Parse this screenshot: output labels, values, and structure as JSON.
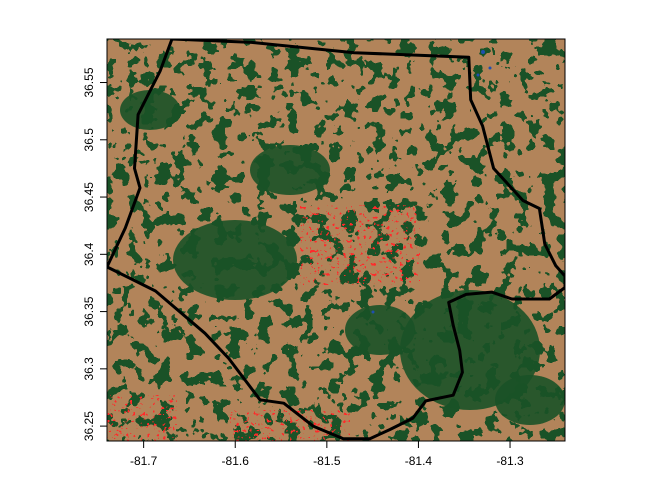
{
  "map": {
    "x_axis": {
      "range": [
        -81.74,
        -81.24
      ],
      "ticks": [
        {
          "value": -81.7,
          "label": "-81.7"
        },
        {
          "value": -81.6,
          "label": "-81.6"
        },
        {
          "value": -81.5,
          "label": "-81.5"
        },
        {
          "value": -81.4,
          "label": "-81.4"
        },
        {
          "value": -81.3,
          "label": "-81.3"
        }
      ]
    },
    "y_axis": {
      "range": [
        36.237,
        36.588
      ],
      "ticks": [
        {
          "value": 36.25,
          "label": "36.25"
        },
        {
          "value": 36.3,
          "label": "36.3"
        },
        {
          "value": 36.35,
          "label": "36.35"
        },
        {
          "value": 36.4,
          "label": "36.4"
        },
        {
          "value": 36.45,
          "label": "36.45"
        },
        {
          "value": 36.5,
          "label": "36.5"
        },
        {
          "value": 36.55,
          "label": "36.55"
        }
      ]
    },
    "colors": {
      "forest": "#1a5227",
      "agriculture": "#b2845a",
      "developed": "#ff2a2a",
      "open": "#fffbe0",
      "water": "#1f4fb0",
      "boundary": "#000000"
    },
    "boundary": [
      [
        -81.669,
        36.588
      ],
      [
        -81.582,
        36.585
      ],
      [
        -81.47,
        36.576
      ],
      [
        -81.345,
        36.572
      ],
      [
        -81.343,
        36.535
      ],
      [
        -81.33,
        36.512
      ],
      [
        -81.318,
        36.475
      ],
      [
        -81.286,
        36.447
      ],
      [
        -81.268,
        36.44
      ],
      [
        -81.262,
        36.409
      ],
      [
        -81.25,
        36.39
      ],
      [
        -81.24,
        36.381
      ],
      [
        -81.24,
        36.371
      ],
      [
        -81.257,
        36.361
      ],
      [
        -81.298,
        36.361
      ],
      [
        -81.32,
        36.367
      ],
      [
        -81.348,
        36.365
      ],
      [
        -81.367,
        36.358
      ],
      [
        -81.362,
        36.338
      ],
      [
        -81.355,
        36.316
      ],
      [
        -81.352,
        36.297
      ],
      [
        -81.362,
        36.277
      ],
      [
        -81.392,
        36.272
      ],
      [
        -81.406,
        36.257
      ],
      [
        -81.431,
        36.247
      ],
      [
        -81.453,
        36.239
      ],
      [
        -81.482,
        36.239
      ],
      [
        -81.515,
        36.25
      ],
      [
        -81.547,
        36.27
      ],
      [
        -81.573,
        36.273
      ],
      [
        -81.607,
        36.309
      ],
      [
        -81.633,
        36.331
      ],
      [
        -81.687,
        36.368
      ],
      [
        -81.74,
        36.389
      ],
      [
        -81.72,
        36.423
      ],
      [
        -81.704,
        36.458
      ],
      [
        -81.71,
        36.475
      ],
      [
        -81.706,
        36.522
      ],
      [
        -81.682,
        36.56
      ],
      [
        -81.669,
        36.588
      ]
    ]
  }
}
